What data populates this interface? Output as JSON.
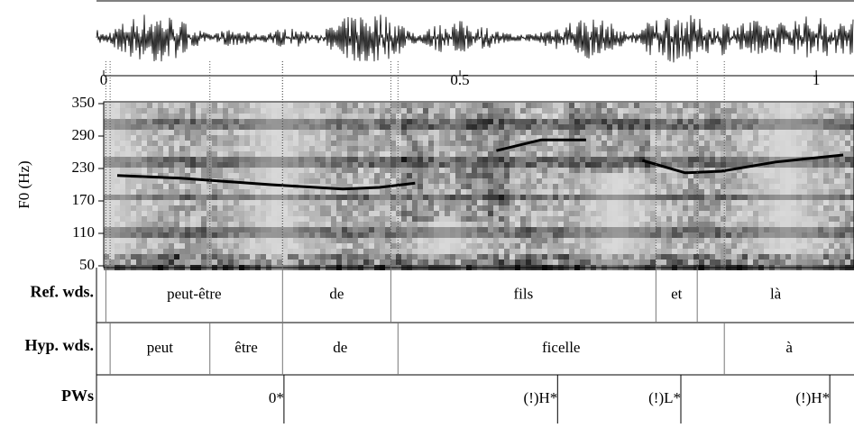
{
  "chart_data": {
    "type": "line",
    "y_label": "F0 (Hz)",
    "xlim": [
      0,
      1.053
    ],
    "xticks": [
      0,
      0.5,
      1
    ],
    "ylim": [
      50,
      350
    ],
    "yticks": [
      50,
      110,
      170,
      230,
      290,
      350
    ],
    "x": [
      0.019,
      0.108,
      0.235,
      0.335,
      0.387,
      0.437,
      null,
      0.551,
      0.614,
      0.677,
      null,
      0.756,
      0.816,
      0.867,
      0.943,
      1.038
    ],
    "series": [
      {
        "name": "F0",
        "color": "#000000",
        "values": [
          217,
          212,
          200,
          192,
          195,
          203,
          null,
          263,
          283,
          283,
          null,
          245,
          222,
          225,
          242,
          255
        ]
      }
    ],
    "tiers": [
      {
        "name": "Ref. wds.",
        "intervals": [
          {
            "start": 0.003,
            "end": 0.251,
            "label": "peut-être"
          },
          {
            "start": 0.251,
            "end": 0.403,
            "label": "de"
          },
          {
            "start": 0.403,
            "end": 0.775,
            "label": "fils"
          },
          {
            "start": 0.775,
            "end": 0.833,
            "label": "et"
          },
          {
            "start": 0.833,
            "end": 1.053,
            "label": "là"
          }
        ]
      },
      {
        "name": "Hyp. wds.",
        "intervals": [
          {
            "start": 0.009,
            "end": 0.149,
            "label": "peut"
          },
          {
            "start": 0.149,
            "end": 0.251,
            "label": "être"
          },
          {
            "start": 0.251,
            "end": 0.413,
            "label": "de"
          },
          {
            "start": 0.413,
            "end": 0.871,
            "label": "ficelle"
          },
          {
            "start": 0.871,
            "end": 1.053,
            "label": "à"
          }
        ]
      },
      {
        "name": "PWs",
        "points": [
          {
            "time": 0.253,
            "label": "0*"
          },
          {
            "time": 0.637,
            "label": "(!)H*"
          },
          {
            "time": 0.81,
            "label": "(!)L*"
          },
          {
            "time": 1.019,
            "label": "(!)H*"
          }
        ]
      }
    ]
  }
}
